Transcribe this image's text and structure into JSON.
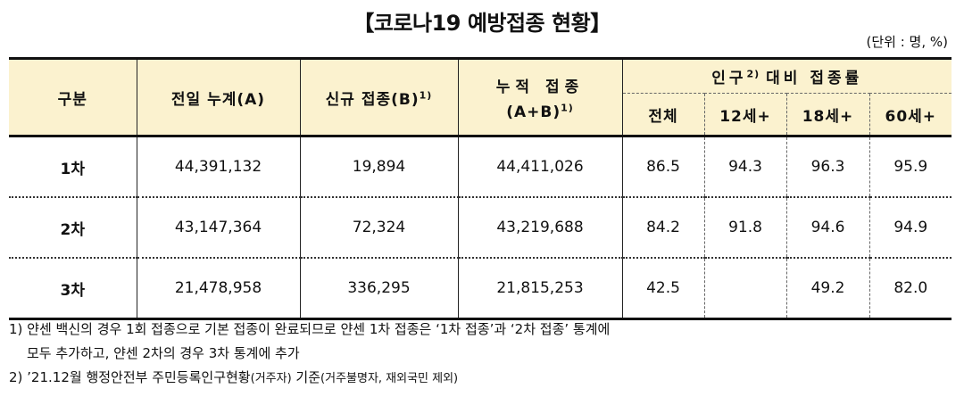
{
  "title": "【코로나19 예방접종 현황】",
  "unit": "(단위 : 명, %)",
  "headers": {
    "category": "구분",
    "prev_cumulative": "전일 누계(A)",
    "new_label": "신규 접종(B)",
    "new_sup": "1)",
    "cumulative_line1": "누적 접종",
    "cumulative_line2": "(A+B)",
    "cumulative_sup": "1)",
    "rate_main": "인구",
    "rate_sup": "2)",
    "rate_rest": "대비 접종률",
    "sub_total": "전체",
    "sub_12": "12세+",
    "sub_18": "18세+",
    "sub_60": "60세+"
  },
  "rows": [
    {
      "label": "1차",
      "prev": "44,391,132",
      "new": "19,894",
      "cum": "44,411,026",
      "total": "86.5",
      "a12": "94.3",
      "a18": "96.3",
      "a60": "95.9"
    },
    {
      "label": "2차",
      "prev": "43,147,364",
      "new": "72,324",
      "cum": "43,219,688",
      "total": "84.2",
      "a12": "91.8",
      "a18": "94.6",
      "a60": "94.9"
    },
    {
      "label": "3차",
      "prev": "21,478,958",
      "new": "336,295",
      "cum": "21,815,253",
      "total": "42.5",
      "a12": "",
      "a18": "49.2",
      "a60": "82.0"
    }
  ],
  "notes": {
    "n1_line1": "1) 얀센 백신의 경우 1회 접종으로 기본 접종이 완료되므로 얀센 1차 접종은 ‘1차 접종’과 ‘2차 접종’ 통계에",
    "n1_line2": "모두 추가하고, 얀센 2차의 경우 3차 통계에 추가",
    "n2_main": "2) ’21.12월 행정안전부 주민등록인구현황",
    "n2_small1": "(거주자)",
    "n2_mid": " 기준",
    "n2_small2": "(거주불명자, 재외국민 제외)"
  }
}
